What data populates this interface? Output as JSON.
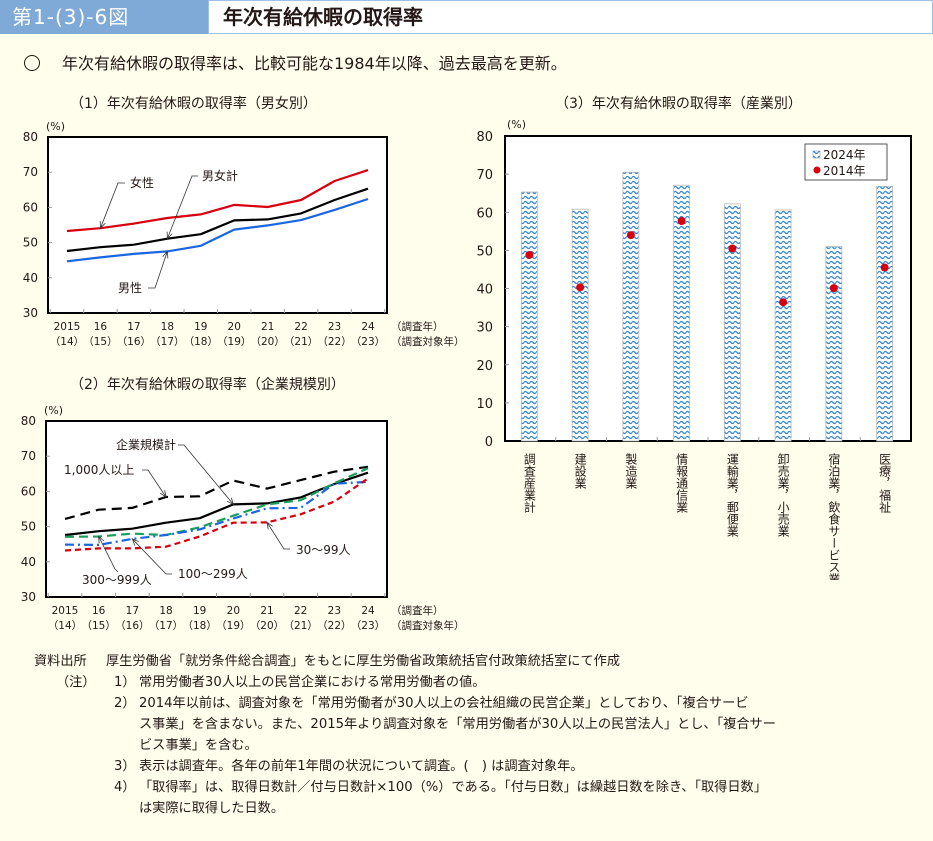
{
  "header": {
    "figure_number": "第1-(3)-6図",
    "title": "年次有給休暇の取得率",
    "accent_color": "#7fa9d6"
  },
  "lead": {
    "bullet_icon": "circle-bullet",
    "text": "年次有給休暇の取得率は、比較可能な1984年以降、過去最高を更新。"
  },
  "chart_data": [
    {
      "type": "line",
      "title": "（1）年次有給休暇の取得率（男女別）",
      "ylabel": "(%)",
      "ylim": [
        30,
        80
      ],
      "yticks": [
        "30",
        "40",
        "50",
        "60",
        "70",
        "80"
      ],
      "categories": [
        "2015",
        "16",
        "17",
        "18",
        "19",
        "20",
        "21",
        "22",
        "23",
        "24"
      ],
      "categories_sub": [
        "（14）",
        "（15）",
        "（16）",
        "（17）",
        "（18）",
        "（19）",
        "（20）",
        "（21）",
        "（22）",
        "（23）"
      ],
      "xlabel": "（調査年）",
      "xlabel_sub": "（調査対象年）",
      "series": [
        {
          "name": "女性",
          "color": "#d7000f",
          "style": "solid",
          "values": [
            53.3,
            54.1,
            55.4,
            57.0,
            58.0,
            60.7,
            60.1,
            62.1,
            67.5,
            70.6
          ]
        },
        {
          "name": "男女計",
          "color": "#000000",
          "style": "solid",
          "values": [
            47.6,
            48.7,
            49.4,
            51.1,
            52.4,
            56.3,
            56.6,
            58.3,
            62.1,
            65.3
          ]
        },
        {
          "name": "男性",
          "color": "#1a66e0",
          "style": "solid",
          "values": [
            44.7,
            45.8,
            46.8,
            47.5,
            49.1,
            53.7,
            54.9,
            56.4,
            59.3,
            62.4
          ]
        }
      ]
    },
    {
      "type": "line",
      "title": "（2）年次有給休暇の取得率（企業規模別）",
      "ylabel": "(%)",
      "ylim": [
        30,
        80
      ],
      "yticks": [
        "30",
        "40",
        "50",
        "60",
        "70",
        "80"
      ],
      "categories": [
        "2015",
        "16",
        "17",
        "18",
        "19",
        "20",
        "21",
        "22",
        "23",
        "24"
      ],
      "categories_sub": [
        "（14）",
        "（15）",
        "（16）",
        "（17）",
        "（18）",
        "（19）",
        "（20）",
        "（21）",
        "（22）",
        "（23）"
      ],
      "xlabel": "（調査年）",
      "xlabel_sub": "（調査対象年）",
      "series": [
        {
          "name": "1,000人以上",
          "color": "#000000",
          "style": "longdash",
          "values": [
            52.2,
            54.8,
            55.3,
            58.4,
            58.6,
            63.1,
            60.8,
            63.2,
            65.6,
            67.0
          ]
        },
        {
          "name": "企業規模計",
          "color": "#000000",
          "style": "solid",
          "values": [
            47.6,
            48.7,
            49.4,
            51.1,
            52.4,
            56.3,
            56.6,
            58.3,
            62.1,
            65.3
          ]
        },
        {
          "name": "300～999人",
          "color": "#1a9e5c",
          "style": "dash",
          "values": [
            47.1,
            47.2,
            48.0,
            47.6,
            49.8,
            53.1,
            56.3,
            57.5,
            62.3,
            66.6
          ]
        },
        {
          "name": "100～299人",
          "color": "#1a66e0",
          "style": "dashdot",
          "values": [
            44.9,
            44.8,
            46.5,
            47.6,
            49.2,
            52.3,
            55.2,
            55.3,
            62.2,
            62.7
          ]
        },
        {
          "name": "30～99人",
          "color": "#d7000f",
          "style": "shortdash",
          "values": [
            43.2,
            43.8,
            43.8,
            44.3,
            47.2,
            51.1,
            51.2,
            53.5,
            57.1,
            63.7
          ]
        }
      ]
    },
    {
      "type": "bar",
      "title": "（3）年次有給休暇の取得率（産業別）",
      "ylabel": "(%)",
      "ylim": [
        0,
        80
      ],
      "yticks": [
        "0",
        "10",
        "20",
        "30",
        "40",
        "50",
        "60",
        "70",
        "80"
      ],
      "categories": [
        "調査産業計",
        "建設業",
        "製造業",
        "情報通信業",
        "運輸業，郵便業",
        "卸売業，小売業",
        "宿泊業，飲食サービス業",
        "医療，福祉"
      ],
      "legend_position": "top-right",
      "series": [
        {
          "name": "2024年",
          "color": "#3a8fd8",
          "mark": "bar",
          "values": [
            65.3,
            60.8,
            70.5,
            67.1,
            62.2,
            60.6,
            51.0,
            66.8
          ]
        },
        {
          "name": "2014年",
          "color": "#d7000f",
          "mark": "dot",
          "values": [
            48.8,
            40.3,
            54.0,
            57.7,
            50.5,
            36.4,
            40.1,
            45.5
          ]
        }
      ]
    }
  ],
  "notes": {
    "source_label": "資料出所",
    "source_text": "厚生労働省「就労条件総合調査」をもとに厚生労働省政策統括官付政策統括室にて作成",
    "notes_label": "（注）",
    "items": [
      {
        "num": "1）",
        "lines": [
          "常用労働者30人以上の民営企業における常用労働者の値。"
        ]
      },
      {
        "num": "2）",
        "lines": [
          "2014年以前は、調査対象を「常用労働者が30人以上の会社組織の民営企業」としており、「複合サービ",
          "ス事業」を含まない。また、2015年より調査対象を「常用労働者が30人以上の民営法人」とし、「複合サー",
          "ビス事業」を含む。"
        ]
      },
      {
        "num": "3）",
        "lines": [
          "表示は調査年。各年の前年1年間の状況について調査。(　) は調査対象年。"
        ]
      },
      {
        "num": "4）",
        "lines": [
          "「取得率」は、取得日数計／付与日数計×100（%）である。「付与日数」は繰越日数を除き、「取得日数」",
          "は実際に取得した日数。"
        ]
      }
    ]
  }
}
